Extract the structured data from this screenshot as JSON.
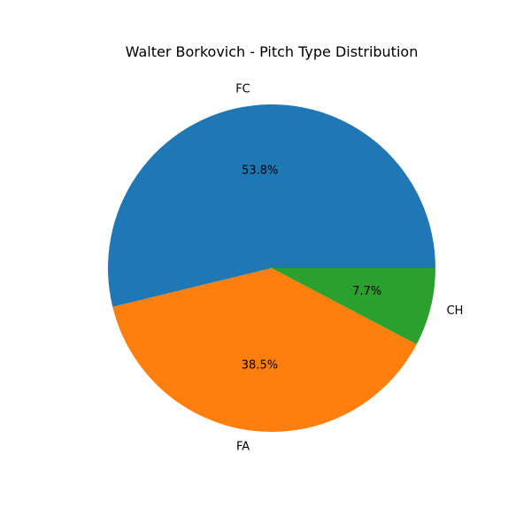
{
  "chart_data": {
    "type": "pie",
    "title": "Walter Borkovich - Pitch Type Distribution",
    "slices": [
      {
        "label": "FC",
        "value": 53.8,
        "pct_label": "53.8%",
        "color": "#1f77b4"
      },
      {
        "label": "FA",
        "value": 38.5,
        "pct_label": "38.5%",
        "color": "#ff7f0e"
      },
      {
        "label": "CH",
        "value": 7.7,
        "pct_label": "7.7%",
        "color": "#2ca02c"
      }
    ],
    "start_angle": "0 degrees (3 o'clock), counter-clockwise",
    "legend": "none"
  }
}
